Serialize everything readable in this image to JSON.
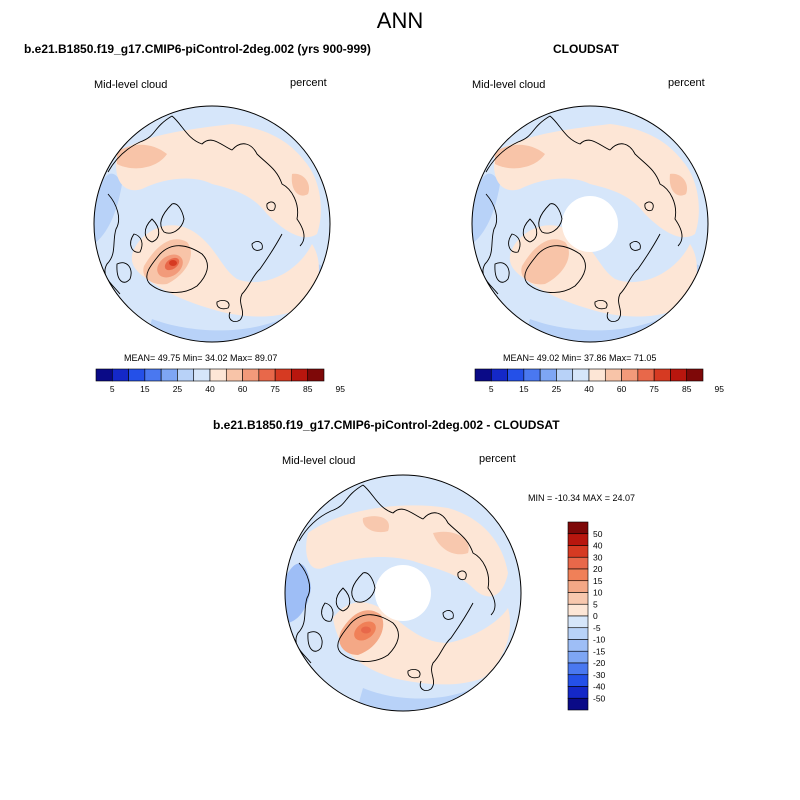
{
  "season": "ANN",
  "colors": {
    "abs_bar": [
      "#0a0a87",
      "#1428c8",
      "#2450e8",
      "#4a78f0",
      "#7ea6f4",
      "#b8d2f8",
      "#d6e6fa",
      "#fde6d6",
      "#f8c4a8",
      "#f29a7a",
      "#e8684a",
      "#d63a22",
      "#b8160e",
      "#7e0808"
    ],
    "diff_bar": [
      "#7e0808",
      "#b8160e",
      "#d63a22",
      "#e8684a",
      "#f08058",
      "#f4a886",
      "#f8c8ae",
      "#fde6d6",
      "#d6e6fa",
      "#b8d2f8",
      "#9ebef6",
      "#7ea6f4",
      "#4a78f0",
      "#2450e8",
      "#1428c8",
      "#0a0a87"
    ]
  },
  "panels": [
    {
      "title": "b.e21.B1850.f19_g17.CMIP6-piControl-2deg.002 (yrs 900-999)",
      "variable": "Mid-level cloud",
      "units": "percent",
      "stats": "MEAN=  49.75  Min=  34.02  Max=  89.07",
      "colorbar_labels": [
        "5",
        "15",
        "25",
        "40",
        "60",
        "75",
        "85",
        "95"
      ]
    },
    {
      "title": "CLOUDSAT",
      "variable": "Mid-level cloud",
      "units": "percent",
      "stats": "MEAN=  49.02  Min=  37.86  Max=  71.05",
      "colorbar_labels": [
        "5",
        "15",
        "25",
        "40",
        "60",
        "75",
        "85",
        "95"
      ]
    },
    {
      "title": "b.e21.B1850.f19_g17.CMIP6-piControl-2deg.002 - CLOUDSAT",
      "variable": "Mid-level cloud",
      "units": "percent",
      "stats": "MIN = -10.34 MAX =  24.07",
      "colorbar_labels": [
        "50",
        "40",
        "30",
        "20",
        "15",
        "10",
        "5",
        "0",
        "-5",
        "-10",
        "-15",
        "-20",
        "-30",
        "-40",
        "-50"
      ]
    }
  ]
}
